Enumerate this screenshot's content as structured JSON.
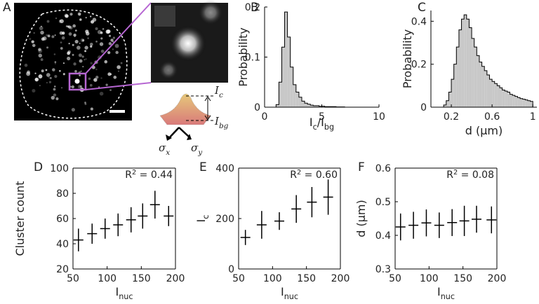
{
  "panel_a": {
    "label": "A",
    "ic": [
      "I",
      "c"
    ],
    "ibg": [
      "I",
      "bg"
    ],
    "sx": [
      "σ",
      "x"
    ],
    "sy": [
      "σ",
      "y"
    ]
  },
  "chart_data": [
    {
      "type": "histogram",
      "label": "B",
      "ylabel": "Probability",
      "xlabel": [
        "I",
        "c",
        "/I",
        "bg"
      ],
      "bins": [
        1.0,
        1.25,
        1.5,
        1.75,
        2.0,
        2.25,
        2.5,
        2.75,
        3.0,
        3.25,
        3.5,
        3.75,
        4.0,
        4.25,
        4.5,
        4.75,
        5.0,
        5.25,
        5.5,
        5.75,
        6.0,
        6.25,
        6.5,
        6.75,
        7.0
      ],
      "values": [
        0.005,
        0.05,
        0.12,
        0.19,
        0.14,
        0.08,
        0.045,
        0.03,
        0.02,
        0.012,
        0.008,
        0.006,
        0.004,
        0.003,
        0.003,
        0.002,
        0.002,
        0.001,
        0.001,
        0.001,
        0.001,
        0.0005,
        0.0005,
        0.0005
      ],
      "color": "#c8c8c8",
      "xlim": [
        0,
        10
      ],
      "xticks": [
        0,
        5,
        10
      ],
      "ylim": [
        0,
        0.2
      ],
      "yticks": [
        0,
        0.1,
        0.2
      ],
      "box": false
    },
    {
      "type": "histogram",
      "label": "C",
      "ylabel": "Probability",
      "xlabel": [
        "d (μm)"
      ],
      "bins": [
        0.1,
        0.125,
        0.15,
        0.175,
        0.2,
        0.225,
        0.25,
        0.275,
        0.3,
        0.325,
        0.35,
        0.375,
        0.4,
        0.425,
        0.45,
        0.475,
        0.5,
        0.525,
        0.55,
        0.575,
        0.6,
        0.625,
        0.65,
        0.675,
        0.7,
        0.725,
        0.75,
        0.775,
        0.8,
        0.825,
        0.85,
        0.875,
        0.9,
        0.925,
        0.95,
        0.975,
        1.0
      ],
      "values": [
        0.0,
        0.01,
        0.03,
        0.07,
        0.13,
        0.2,
        0.28,
        0.36,
        0.41,
        0.43,
        0.41,
        0.37,
        0.32,
        0.28,
        0.24,
        0.21,
        0.19,
        0.17,
        0.15,
        0.13,
        0.12,
        0.11,
        0.1,
        0.09,
        0.08,
        0.075,
        0.07,
        0.06,
        0.055,
        0.05,
        0.045,
        0.04,
        0.037,
        0.034,
        0.03,
        0.027
      ],
      "color": "#c8c8c8",
      "xlim": [
        0,
        1.04
      ],
      "xticks": [
        0.2,
        0.6,
        1
      ],
      "ylim": [
        0,
        0.45
      ],
      "yticks": [
        0,
        0.2,
        0.4
      ],
      "box": false
    },
    {
      "type": "errorbar",
      "label": "D",
      "ylabel": [
        "Cluster count"
      ],
      "xlabel": [
        "I",
        "nuc"
      ],
      "annotation": [
        "R",
        "2",
        " = 0.44"
      ],
      "x": [
        58,
        78,
        97,
        116,
        135,
        152,
        170,
        190
      ],
      "values": [
        43,
        48,
        52,
        55,
        59,
        62,
        71,
        62
      ],
      "errors": [
        9,
        8,
        8,
        9,
        10,
        10,
        11,
        8
      ],
      "color": "#000000",
      "xlim": [
        50,
        200
      ],
      "xticks": [
        50,
        100,
        150,
        200
      ],
      "ylim": [
        20,
        100
      ],
      "yticks": [
        20,
        40,
        60,
        80,
        100
      ],
      "box": true
    },
    {
      "type": "errorbar",
      "label": "E",
      "ylabel": [
        "I",
        "c"
      ],
      "xlabel": [
        "I",
        "nuc"
      ],
      "annotation": [
        "R",
        "2",
        " = 0.60"
      ],
      "x": [
        60,
        84,
        110,
        135,
        158,
        182
      ],
      "values": [
        125,
        175,
        190,
        238,
        265,
        285
      ],
      "errors": [
        30,
        55,
        35,
        55,
        60,
        70
      ],
      "color": "#000000",
      "xlim": [
        50,
        200
      ],
      "xticks": [
        50,
        100,
        150,
        200
      ],
      "ylim": [
        0,
        400
      ],
      "yticks": [
        0,
        200,
        400
      ],
      "box": true
    },
    {
      "type": "errorbar",
      "label": "F",
      "ylabel": [
        "d (μm)"
      ],
      "xlabel": [
        "I",
        "nuc"
      ],
      "annotation": [
        "R",
        "2",
        " = 0.08"
      ],
      "x": [
        58,
        77,
        96,
        115,
        134,
        152,
        170,
        192
      ],
      "values": [
        0.425,
        0.43,
        0.437,
        0.43,
        0.438,
        0.443,
        0.448,
        0.446
      ],
      "errors": [
        0.04,
        0.04,
        0.04,
        0.038,
        0.04,
        0.045,
        0.04,
        0.04
      ],
      "color": "#000000",
      "xlim": [
        50,
        200
      ],
      "xticks": [
        50,
        100,
        150,
        200
      ],
      "ylim": [
        0.3,
        0.6
      ],
      "yticks": [
        0.3,
        0.4,
        0.5,
        0.6
      ],
      "box": true
    }
  ]
}
